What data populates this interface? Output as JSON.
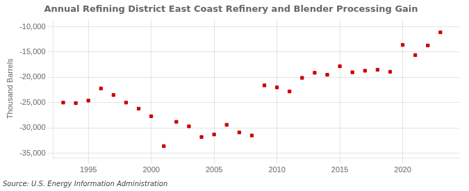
{
  "chart_data": {
    "type": "scatter",
    "title": "Annual Refining District East Coast Refinery and Blender Processing Gain",
    "ylabel": "Thousand Barrels",
    "source": "Source: U.S. Energy Information Administration",
    "x": [
      1993,
      1994,
      1995,
      1996,
      1997,
      1998,
      1999,
      2000,
      2001,
      2002,
      2003,
      2004,
      2005,
      2006,
      2007,
      2008,
      2009,
      2010,
      2011,
      2012,
      2013,
      2014,
      2015,
      2016,
      2017,
      2018,
      2019,
      2020,
      2021,
      2022,
      2023
    ],
    "values": [
      -25000,
      -25100,
      -24600,
      -22200,
      -23500,
      -25000,
      -26200,
      -27700,
      -33600,
      -28800,
      -29700,
      -31800,
      -31300,
      -29400,
      -30900,
      -31500,
      -21600,
      -22000,
      -22800,
      -20100,
      -19100,
      -19500,
      -17800,
      -19000,
      -18700,
      -18500,
      -18900,
      -13600,
      -15600,
      -13700,
      -11100
    ],
    "color": "#cc0000",
    "marker": "square",
    "ylim": [
      -36000,
      -8500
    ],
    "yticks": [
      {
        "value": -10000,
        "label": "-10,000"
      },
      {
        "value": -15000,
        "label": "-15,000"
      },
      {
        "value": -20000,
        "label": "-20,000"
      },
      {
        "value": -25000,
        "label": "-25,000"
      },
      {
        "value": -30000,
        "label": "-30,000"
      },
      {
        "value": -35000,
        "label": "-35,000"
      }
    ],
    "xlim": [
      1992.2,
      2024.5
    ],
    "xticks": [
      1995,
      2000,
      2005,
      2010,
      2015,
      2020
    ],
    "grid": true
  }
}
